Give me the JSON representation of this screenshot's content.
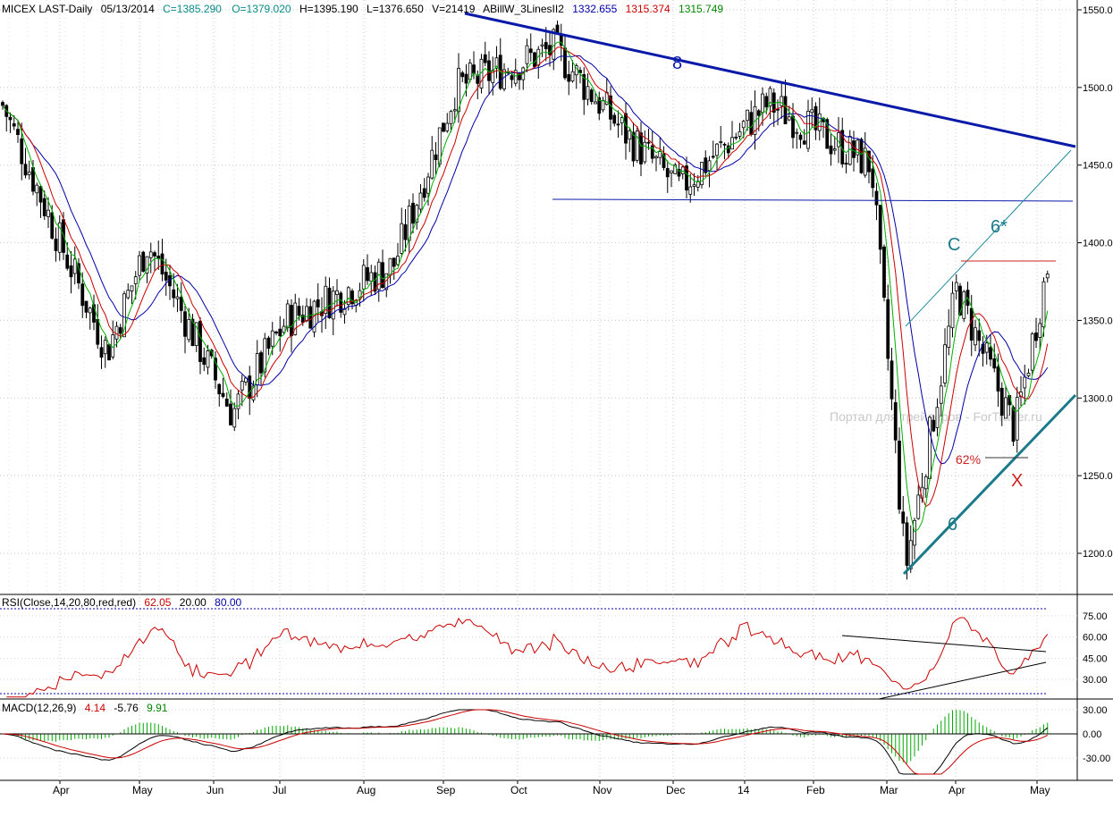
{
  "header": {
    "symbol": "MICEX LAST-Daily",
    "date": "05/13/2014",
    "close": "C=1385.290",
    "open": "O=1379.020",
    "high": "H=1395.190",
    "low": "L=1376.650",
    "volume": "V=21419",
    "indicator": "ABillW_3LinesII2",
    "ind_val1": "1332.655",
    "ind_val2": "1315.374",
    "ind_val3": "1315.749"
  },
  "watermark": "Портал для трейдеров - ForTrader.ru",
  "annotations": {
    "wave_8": "8",
    "wave_C": "C",
    "wave_6star": "6*",
    "wave_6": "6",
    "wave_X": "X",
    "fib_62": "62%"
  },
  "rsi_header": {
    "label": "RSI(Close,14,20,80,red,red)",
    "value": "62.05",
    "level_low": "20.00",
    "level_high": "80.00"
  },
  "macd_header": {
    "label": "MACD(12,26,9)",
    "v1": "4.14",
    "v2": "-5.76",
    "v3": "9.91"
  },
  "colors": {
    "price": "#000000",
    "ma_green": "#00b000",
    "ma_red": "#cc0000",
    "ma_blue": "#0000aa",
    "trend_blue": "#0a1aa8",
    "teal": "#1a7a8a",
    "rsi": "#cc0000",
    "header_green": "#008800",
    "header_teal": "#0a8a8a"
  },
  "chart_data": [
    {
      "type": "candlestick",
      "title": "MICEX LAST-Daily",
      "x_ticks": [
        "Apr",
        "May",
        "Jun",
        "Jul",
        "Aug",
        "Sep",
        "Oct",
        "Nov",
        "Dec",
        "14",
        "Feb",
        "Mar",
        "Apr",
        "May"
      ],
      "y_ticks": [
        "1550.0",
        "1500.0",
        "1450.0",
        "1400.0",
        "1350.0",
        "1300.0",
        "1250.0",
        "1200.0"
      ],
      "ylim": [
        1170,
        1555
      ],
      "grid": true,
      "approx_close_path": [
        {
          "date": "Mar 2013",
          "value": 1490
        },
        {
          "date": "Apr",
          "value": 1410
        },
        {
          "date": "Apr",
          "value": 1330
        },
        {
          "date": "May",
          "value": 1400
        },
        {
          "date": "Jun",
          "value": 1290
        },
        {
          "date": "Jul",
          "value": 1350
        },
        {
          "date": "Aug",
          "value": 1385
        },
        {
          "date": "Sep",
          "value": 1500
        },
        {
          "date": "Oct",
          "value": 1525
        },
        {
          "date": "Nov",
          "value": 1470
        },
        {
          "date": "Dec",
          "value": 1435
        },
        {
          "date": "14",
          "value": 1490
        },
        {
          "date": "Feb",
          "value": 1450
        },
        {
          "date": "Mar",
          "value": 1190
        },
        {
          "date": "Apr",
          "value": 1370
        },
        {
          "date": "Apr",
          "value": 1280
        },
        {
          "date": "May",
          "value": 1385.29
        }
      ],
      "levels": [
        {
          "name": "support",
          "value": 1428
        },
        {
          "name": "C level",
          "value": 1388
        }
      ]
    },
    {
      "type": "line",
      "title": "RSI(Close,14,20,80,red,red)",
      "y_ticks": [
        "75.00",
        "60.00",
        "45.00",
        "30.00"
      ],
      "ylim": [
        12,
        88
      ],
      "levels": [
        20,
        80
      ],
      "last": 62.05
    },
    {
      "type": "line",
      "title": "MACD(12,26,9)",
      "y_ticks": [
        "30.00",
        "0.00",
        "-30.00"
      ],
      "ylim": [
        -55,
        35
      ],
      "last": [
        4.14,
        -5.76,
        9.91
      ]
    }
  ]
}
